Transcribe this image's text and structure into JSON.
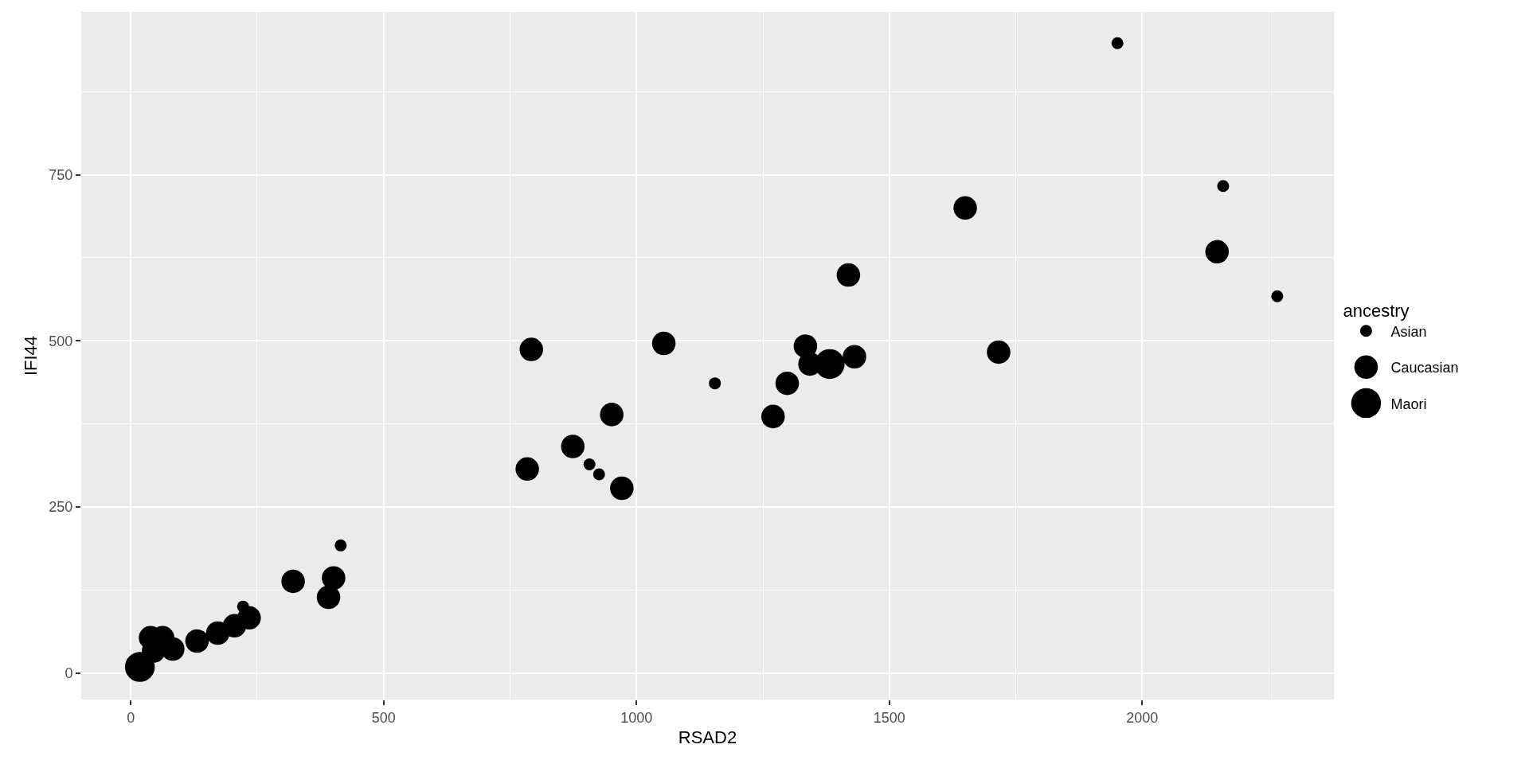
{
  "chart_data": {
    "type": "bubble",
    "xlabel": "RSAD2",
    "ylabel": "IFI44",
    "legend_title": "ancestry",
    "xlim": [
      -98,
      2379
    ],
    "ylim": [
      -40,
      995
    ],
    "xticks": [
      0,
      500,
      1000,
      1500,
      2000
    ],
    "yticks": [
      0,
      250,
      500,
      750
    ],
    "grid": true,
    "legend": "right",
    "marker": "circle",
    "series": [
      {
        "name": "Asian",
        "color": "#000000",
        "x": [
          1951,
          2160,
          2267,
          1155,
          907,
          926,
          415,
          222
        ],
        "values": [
          948,
          733,
          567,
          436,
          314,
          299,
          192,
          100
        ],
        "sizes": [
          0.16,
          0.16,
          0.16,
          0.16,
          0.16,
          0.16,
          0.16,
          0.16
        ]
      },
      {
        "name": "Caucasian",
        "color": "#000000",
        "x": [
          1650,
          2148,
          1419,
          1716,
          1431,
          1334,
          1343,
          1298,
          1270,
          1054,
          792,
          951,
          874,
          784,
          971,
          321,
          401,
          391,
          234,
          205,
          172,
          131,
          83,
          63,
          39,
          45
        ],
        "values": [
          700,
          634,
          599,
          483,
          476,
          492,
          465,
          436,
          386,
          496,
          487,
          389,
          341,
          307,
          278,
          138,
          143,
          114,
          83,
          71,
          60,
          48,
          36,
          53,
          53,
          33
        ],
        "sizes": [
          0.62,
          0.62,
          0.62,
          0.62,
          0.62,
          0.62,
          0.62,
          0.62,
          0.62,
          0.62,
          0.62,
          0.62,
          0.62,
          0.62,
          0.62,
          0.62,
          0.62,
          0.62,
          0.62,
          0.62,
          0.62,
          0.62,
          0.62,
          0.62,
          0.62,
          0.62
        ]
      },
      {
        "name": "Maori",
        "color": "#000000",
        "x": [
          1382,
          18
        ],
        "values": [
          465,
          9
        ],
        "sizes": [
          1,
          1
        ]
      }
    ]
  }
}
